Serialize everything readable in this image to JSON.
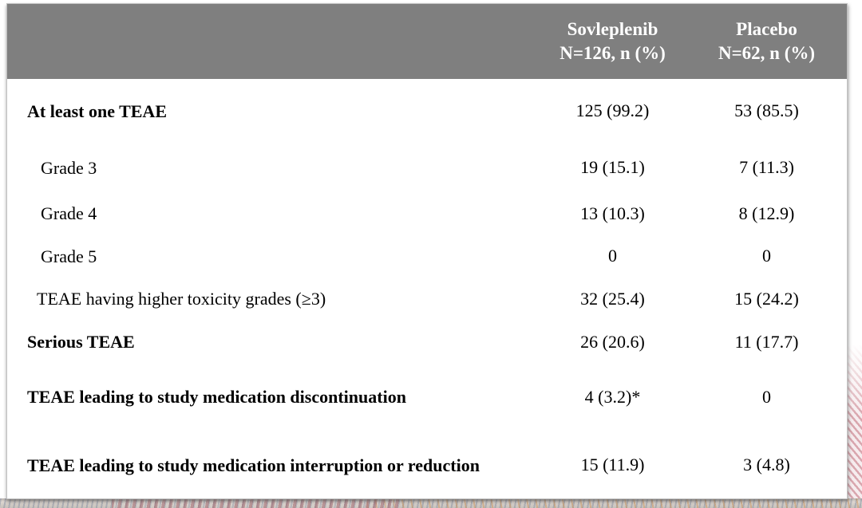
{
  "colors": {
    "header_bg": "#7f7f7f",
    "header_text": "#ffffff",
    "body_text": "#000000",
    "card_bg": "#ffffff",
    "card_border": "#c2c2c2",
    "stripe_pink": "#d9a6ae",
    "band_mauve": "#a86c74",
    "band_tan": "#d0965c",
    "band_grayblue": "#828ca0"
  },
  "table": {
    "header": {
      "columns": [
        {
          "line1": "Sovleplenib",
          "line2": "N=126, n (%)"
        },
        {
          "line1": "Placebo",
          "line2": "N=62, n (%)"
        }
      ]
    },
    "rows": [
      {
        "label": "At least one TEAE",
        "sovleplenib": "125 (99.2)",
        "placebo": "53 (85.5)",
        "emphasis": true,
        "level": 0
      },
      {
        "label": "Grade 3",
        "sovleplenib": "19 (15.1)",
        "placebo": "7 (11.3)",
        "emphasis": false,
        "level": 2
      },
      {
        "label": "Grade 4",
        "sovleplenib": "13 (10.3)",
        "placebo": "8 (12.9)",
        "emphasis": false,
        "level": 2
      },
      {
        "label": "Grade 5",
        "sovleplenib": "0",
        "placebo": "0",
        "emphasis": false,
        "level": 2
      },
      {
        "label": "TEAE having higher toxicity grades (≥3)",
        "sovleplenib": "32 (25.4)",
        "placebo": "15 (24.2)",
        "emphasis": false,
        "level": 1
      },
      {
        "label": "Serious TEAE",
        "sovleplenib": "26 (20.6)",
        "placebo": "11 (17.7)",
        "emphasis": true,
        "level": 0
      },
      {
        "label": "TEAE leading to study medication discontinuation",
        "sovleplenib": "4 (3.2)*",
        "placebo": "0",
        "emphasis": true,
        "level": 0
      },
      {
        "label": "TEAE leading to study medication interruption or reduction",
        "sovleplenib": "15 (11.9)",
        "placebo": "3 (4.8)",
        "emphasis": true,
        "level": 0
      }
    ]
  }
}
